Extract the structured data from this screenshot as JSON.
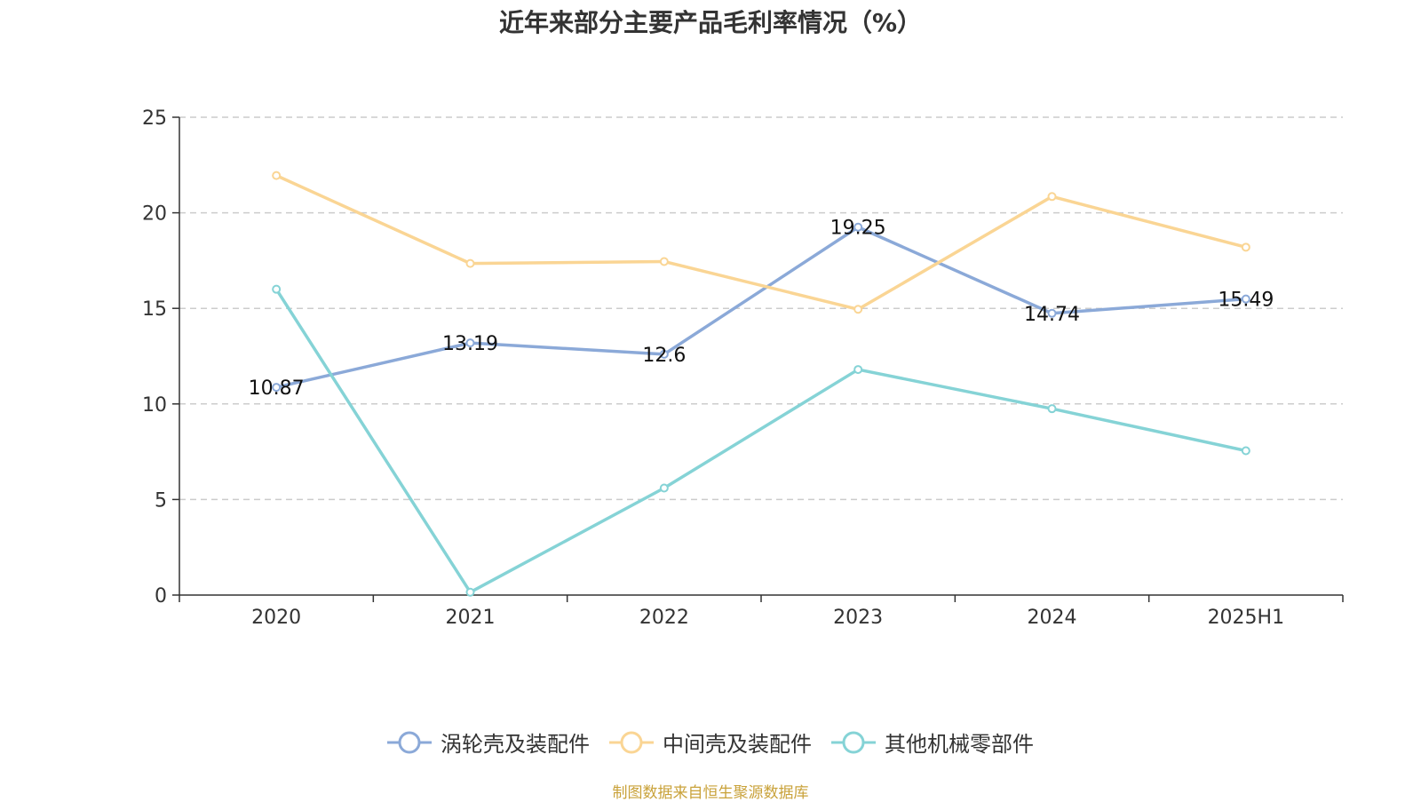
{
  "chart_data": {
    "type": "line",
    "title": "近年来部分主要产品毛利率情况（%）",
    "categories": [
      "2020",
      "2021",
      "2022",
      "2023",
      "2024",
      "2025H1"
    ],
    "ylim": [
      0,
      25
    ],
    "yticks": [
      0,
      5,
      10,
      15,
      20,
      25
    ],
    "grid": true,
    "legend_position": "bottom",
    "series": [
      {
        "name": "涡轮壳及装配件",
        "color": "#8ba9d8",
        "values": [
          10.87,
          13.19,
          12.6,
          19.25,
          14.74,
          15.49
        ],
        "show_labels": true
      },
      {
        "name": "中间壳及装配件",
        "color": "#fad594",
        "values": [
          21.95,
          17.35,
          17.45,
          14.95,
          20.85,
          18.2
        ],
        "show_labels": false
      },
      {
        "name": "其他机械零部件",
        "color": "#85d3d6",
        "values": [
          16.0,
          0.15,
          5.6,
          11.8,
          9.75,
          7.55
        ],
        "show_labels": false
      }
    ]
  },
  "source": "制图数据来自恒生聚源数据库"
}
